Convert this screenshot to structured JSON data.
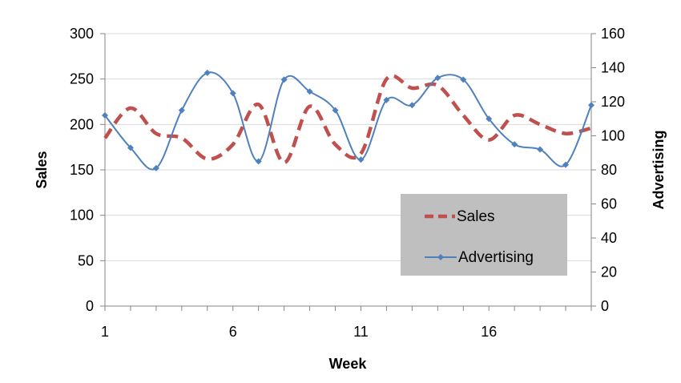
{
  "chart_data": {
    "type": "line",
    "xlabel": "Week",
    "ylabel": "Sales",
    "y2label": "Advertising",
    "x": [
      1,
      2,
      3,
      4,
      5,
      6,
      7,
      8,
      9,
      10,
      11,
      12,
      13,
      14,
      15,
      16,
      17,
      18,
      19,
      20
    ],
    "x_ticks": [
      1,
      6,
      11,
      16
    ],
    "xlim": [
      1,
      20
    ],
    "ylim": [
      0,
      300
    ],
    "y_ticks": [
      0,
      50,
      100,
      150,
      200,
      250,
      300
    ],
    "y2lim": [
      0,
      160
    ],
    "y2_ticks": [
      0,
      20,
      40,
      60,
      80,
      100,
      120,
      140,
      160
    ],
    "grid": true,
    "legend_position": "bottom-right-inside",
    "series": [
      {
        "name": "Sales",
        "axis": "left",
        "style": "dashed",
        "smooth": true,
        "color": "#c0504d",
        "values": [
          185,
          218,
          190,
          185,
          162,
          178,
          222,
          158,
          220,
          178,
          168,
          250,
          240,
          243,
          210,
          183,
          210,
          200,
          190,
          196
        ]
      },
      {
        "name": "Advertising",
        "axis": "right",
        "style": "solid",
        "markers": "diamond",
        "smooth": true,
        "color": "#4f81bd",
        "values": [
          112,
          93,
          81,
          115,
          137,
          125,
          85,
          133,
          126,
          115,
          86,
          121,
          118,
          134,
          133,
          110,
          95,
          92,
          83,
          118
        ]
      }
    ]
  },
  "colors": {
    "sales": "#c0504d",
    "advertising": "#4f81bd",
    "grid": "#d9d9d9",
    "axis": "#868686",
    "legend_bg": "#bfbfbf"
  }
}
